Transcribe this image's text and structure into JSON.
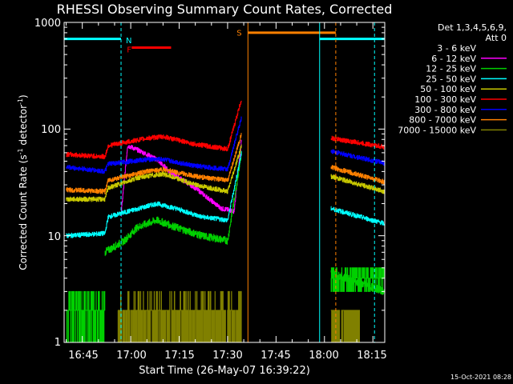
{
  "chart_data": {
    "type": "line",
    "title": "RHESSI Observing Summary Count Rates, Corrected",
    "xlabel": "Start Time (26-May-07 16:39:22)",
    "ylabel": "Corrected Count Rate (s",
    "ylabel_sup1": "-1",
    "ylabel_mid": " detector",
    "ylabel_sup2": "-1",
    "ylabel_end": ")",
    "y_scale": "log",
    "ylim": [
      1,
      1000
    ],
    "xlim": [
      "16:39",
      "18:18"
    ],
    "y_ticks": [
      "1",
      "10",
      "100",
      "1000"
    ],
    "x_ticks": [
      "16:45",
      "17:00",
      "17:15",
      "17:30",
      "17:45",
      "18:00",
      "18:15"
    ],
    "legend_header": [
      "Det 1,3,4,5,6,9,",
      "Att 0"
    ],
    "legend_position": "top-right-outside",
    "timestamp": "15-Oct-2021 08:28",
    "series": [
      {
        "name": "3 - 6 keV",
        "color": "#000000"
      },
      {
        "name": "6 - 12 keV",
        "color": "#ff00ff"
      },
      {
        "name": "12 - 25 keV",
        "color": "#00d000"
      },
      {
        "name": "25 - 50 keV",
        "color": "#00ffff"
      },
      {
        "name": "50 - 100 keV",
        "color": "#c8c800"
      },
      {
        "name": "100 - 300 keV",
        "color": "#ff0000"
      },
      {
        "name": "300 - 800 keV",
        "color": "#0000ff"
      },
      {
        "name": "800 - 7000 keV",
        "color": "#ff8000"
      },
      {
        "name": "7000 - 15000 keV",
        "color": "#808000"
      }
    ],
    "flags": [
      {
        "label": "N",
        "color": "#00ffff",
        "level": 700
      },
      {
        "label": "F",
        "color": "#ff0000",
        "level": 580
      },
      {
        "label": "S",
        "color": "#ff8000",
        "level": 800
      }
    ]
  }
}
